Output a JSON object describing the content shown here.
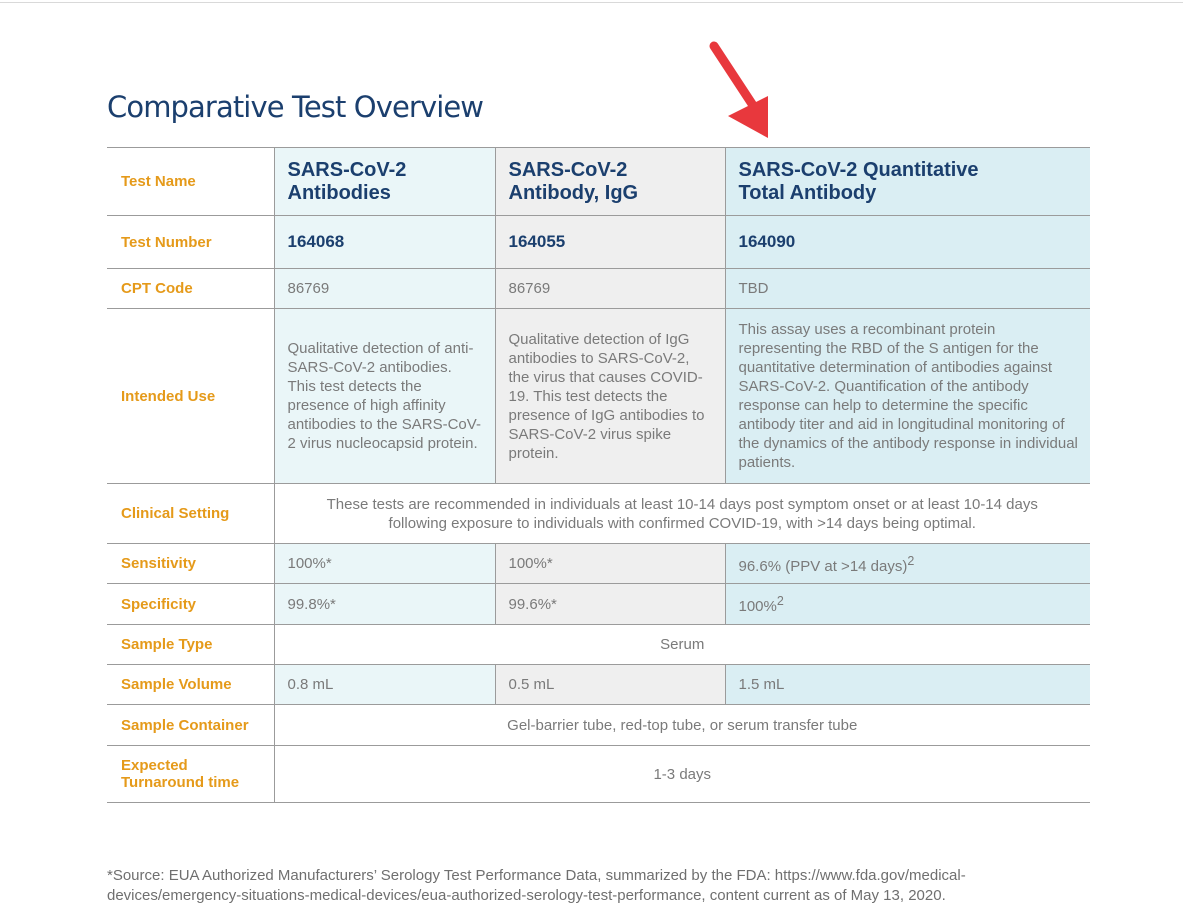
{
  "title": "Comparative Test Overview",
  "table": {
    "labels": {
      "test_name": "Test Name",
      "test_number": "Test Number",
      "cpt_code": "CPT Code",
      "intended_use": "Intended Use",
      "clinical_setting": "Clinical Setting",
      "sensitivity": "Sensitivity",
      "specificity": "Specificity",
      "sample_type": "Sample Type",
      "sample_volume": "Sample Volume",
      "sample_container": "Sample Container",
      "turnaround_line1": "Expected",
      "turnaround_line2": "Turnaround time"
    },
    "tests": [
      {
        "name_line1": "SARS-CoV-2",
        "name_line2": "Antibodies",
        "number": "164068",
        "cpt": "86769",
        "intended_use": "Qualitative detection of anti-SARS-CoV-2 antibodies. This test detects the presence of high affinity antibodies to the SARS-CoV-2 virus nucleocapsid protein.",
        "sensitivity": "100%*",
        "specificity": "99.8%*",
        "volume": "0.8 mL"
      },
      {
        "name_line1": "SARS-CoV-2",
        "name_line2": "Antibody, IgG",
        "number": "164055",
        "cpt": "86769",
        "intended_use": "Qualitative detection of IgG antibodies to SARS-CoV-2, the virus that causes COVID-19. This test detects the presence of IgG antibodies to SARS-CoV-2 virus spike protein.",
        "sensitivity": "100%*",
        "specificity": "99.6%*",
        "volume": "0.5 mL"
      },
      {
        "name_line1": "SARS-CoV-2 Quantitative",
        "name_line2": "Total Antibody",
        "number": "164090",
        "cpt": "TBD",
        "intended_use": "This assay uses a recombinant protein representing the RBD of the S antigen for the quantitative determination of antibodies against SARS-CoV-2. Quantification of the antibody response can help to determine the specific antibody titer and aid in longitudinal monitoring of the dynamics of the antibody response in individual patients.",
        "sensitivity": "96.6% (PPV at >14 days)",
        "sensitivity_sup": "2",
        "specificity": "100%",
        "specificity_sup": "2",
        "volume": "1.5 mL"
      }
    ],
    "clinical_setting_line1": "These tests are recommended in individuals at least 10-14 days post symptom onset or at least 10-14 days",
    "clinical_setting_line2": "following exposure to individuals with confirmed COVID-19, with >14 days being optimal.",
    "sample_type": "Serum",
    "sample_container": "Gel-barrier tube, red-top tube, or serum transfer tube",
    "turnaround": "1-3 days"
  },
  "footnote": {
    "line1": "*Source:  EUA Authorized Manufacturers’ Serology Test Performance Data, summarized by the FDA: https://www.fda.gov/medical-",
    "line2": "devices/emergency-situations-medical-devices/eua-authorized-serology-test-performance, content current as of May 13, 2020."
  },
  "colors": {
    "title": "#1b3f6e",
    "label": "#e59a1a",
    "arrow": "#e8383d",
    "col1_bg": "#eaf6f8",
    "col2_bg": "#efefef",
    "col3_bg": "#daeef3"
  },
  "annotation_icon": "red-arrow-pointing-down-left"
}
